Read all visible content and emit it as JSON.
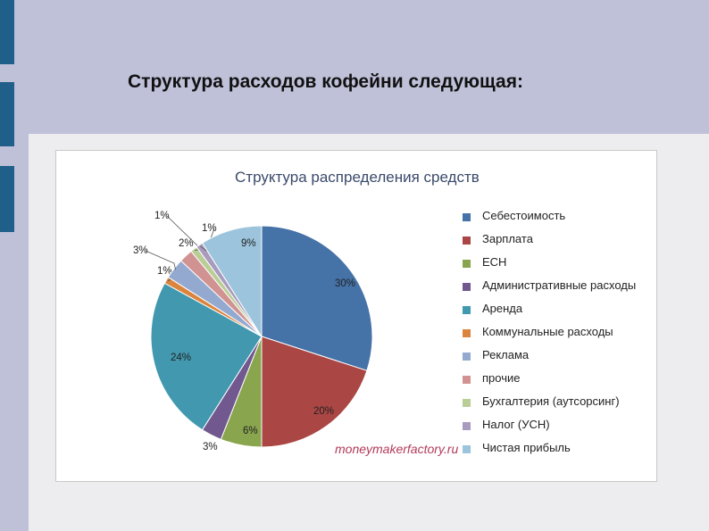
{
  "slide": {
    "title": "Структура расходов кофейни следующая:",
    "watermark": "moneymakerfactory.ru"
  },
  "chart_data": {
    "type": "pie",
    "title": "Структура распределения средств",
    "legend_position": "right",
    "slices": [
      {
        "label": "Себестоимость",
        "value": 30,
        "value_label": "30%",
        "color": "#4572a7"
      },
      {
        "label": "Зарплата",
        "value": 20,
        "value_label": "20%",
        "color": "#aa4643"
      },
      {
        "label": "ЕСН",
        "value": 6,
        "value_label": "6%",
        "color": "#89a54e"
      },
      {
        "label": "Административные расходы",
        "value": 3,
        "value_label": "3%",
        "color": "#71588f"
      },
      {
        "label": "Аренда",
        "value": 24,
        "value_label": "24%",
        "color": "#4198af"
      },
      {
        "label": "Коммунальные расходы",
        "value": 1,
        "value_label": "1%",
        "color": "#db843d"
      },
      {
        "label": "Реклама",
        "value": 3,
        "value_label": "3%",
        "color": "#93a9cf"
      },
      {
        "label": "прочие",
        "value": 2,
        "value_label": "2%",
        "color": "#d19392"
      },
      {
        "label": "Бухгалтерия (аутсорсинг)",
        "value": 1,
        "value_label": "1%",
        "color": "#b9cd96"
      },
      {
        "label": "Налог (УСН)",
        "value": 1,
        "value_label": "1%",
        "color": "#a99bbd"
      },
      {
        "label": "Чистая прибыль",
        "value": 9,
        "value_label": "9%",
        "color": "#9cc4dc"
      }
    ]
  }
}
